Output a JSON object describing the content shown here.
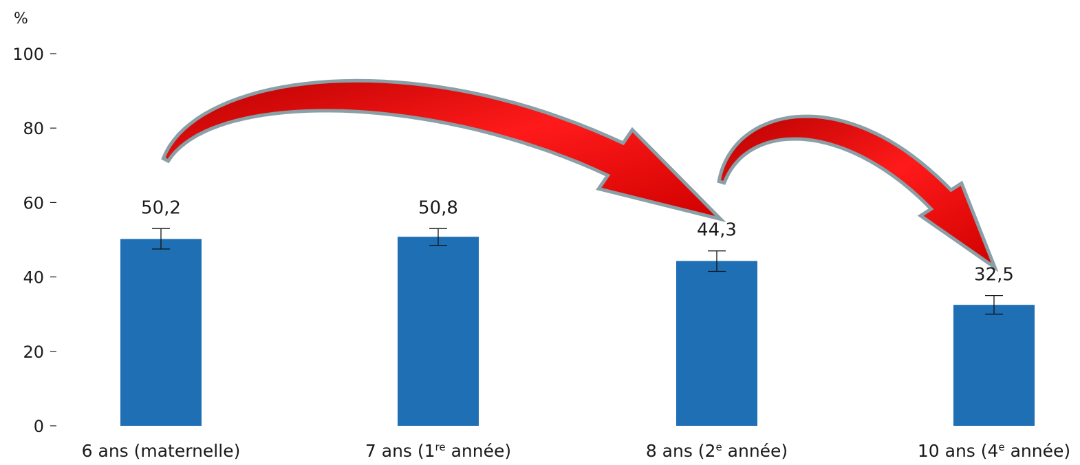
{
  "chart_data": {
    "type": "bar",
    "y_unit": "%",
    "ylim": [
      0,
      100
    ],
    "y_ticks": [
      0,
      20,
      40,
      60,
      80,
      100
    ],
    "y_tick_labels": [
      "0",
      "20",
      "40",
      "60",
      "80",
      "100"
    ],
    "grid": false,
    "categories": [
      {
        "main": "6 ans (maternelle)",
        "pre": "6 ans (maternelle)",
        "sup": "",
        "post": ""
      },
      {
        "main": "7 ans (1re année)",
        "pre": "7 ans (1",
        "sup": "re",
        "post": " année)"
      },
      {
        "main": "8 ans (2e année)",
        "pre": "8 ans (2",
        "sup": "e",
        "post": " année)"
      },
      {
        "main": "10 ans (4e année)",
        "pre": "10 ans (4",
        "sup": "e",
        "post": " année)"
      }
    ],
    "values": [
      50.2,
      50.8,
      44.3,
      32.5
    ],
    "value_labels": [
      "50,2",
      "50,8",
      "44,3",
      "32,5"
    ],
    "error_low": [
      47.5,
      48.5,
      41.5,
      30.0
    ],
    "error_high": [
      53.0,
      53.0,
      47.0,
      35.0
    ],
    "arrows": [
      {
        "from": 0,
        "to": 2
      },
      {
        "from": 2,
        "to": 3
      }
    ],
    "colors": {
      "bar": "#1f6fb5",
      "arrow_fill": "#e00000",
      "arrow_stroke": "#8aa0a6",
      "axis": "#1a1a1a"
    }
  }
}
